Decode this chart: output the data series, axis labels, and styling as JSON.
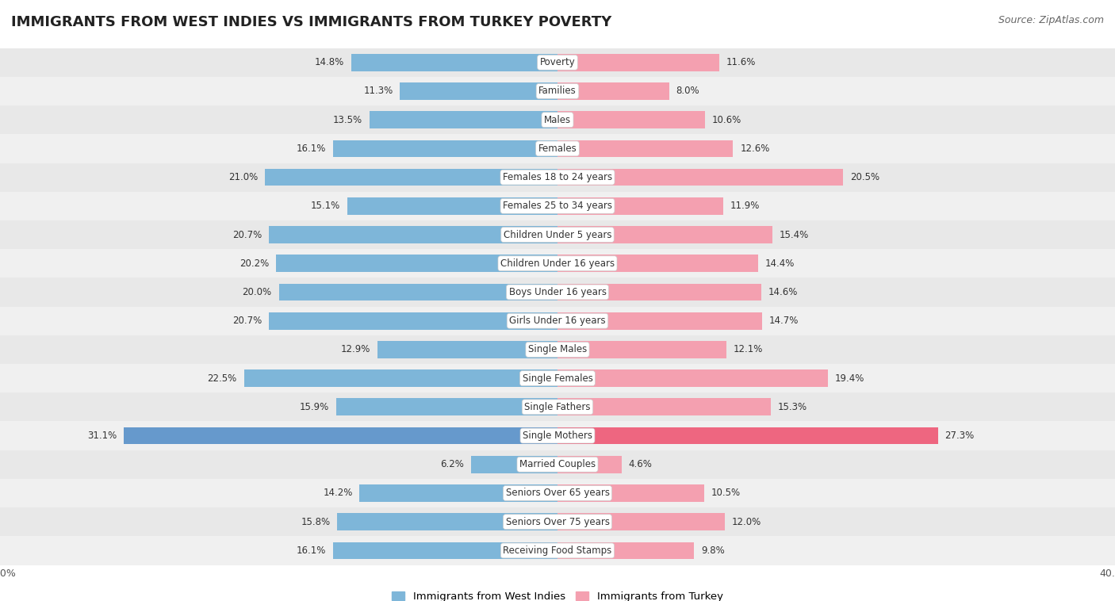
{
  "title": "IMMIGRANTS FROM WEST INDIES VS IMMIGRANTS FROM TURKEY POVERTY",
  "source": "Source: ZipAtlas.com",
  "categories": [
    "Poverty",
    "Families",
    "Males",
    "Females",
    "Females 18 to 24 years",
    "Females 25 to 34 years",
    "Children Under 5 years",
    "Children Under 16 years",
    "Boys Under 16 years",
    "Girls Under 16 years",
    "Single Males",
    "Single Females",
    "Single Fathers",
    "Single Mothers",
    "Married Couples",
    "Seniors Over 65 years",
    "Seniors Over 75 years",
    "Receiving Food Stamps"
  ],
  "west_indies": [
    14.8,
    11.3,
    13.5,
    16.1,
    21.0,
    15.1,
    20.7,
    20.2,
    20.0,
    20.7,
    12.9,
    22.5,
    15.9,
    31.1,
    6.2,
    14.2,
    15.8,
    16.1
  ],
  "turkey": [
    11.6,
    8.0,
    10.6,
    12.6,
    20.5,
    11.9,
    15.4,
    14.4,
    14.6,
    14.7,
    12.1,
    19.4,
    15.3,
    27.3,
    4.6,
    10.5,
    12.0,
    9.8
  ],
  "west_indies_color": "#7EB6D9",
  "turkey_color": "#F4A0B0",
  "west_indies_highlight": "#6699CC",
  "turkey_highlight": "#EE6680",
  "row_bg_even": "#e8e8e8",
  "row_bg_odd": "#f0f0f0",
  "xlim": 40.0,
  "legend_label_wi": "Immigrants from West Indies",
  "legend_label_tr": "Immigrants from Turkey",
  "title_fontsize": 13,
  "source_fontsize": 9,
  "label_fontsize": 8.5,
  "value_fontsize": 8.5
}
